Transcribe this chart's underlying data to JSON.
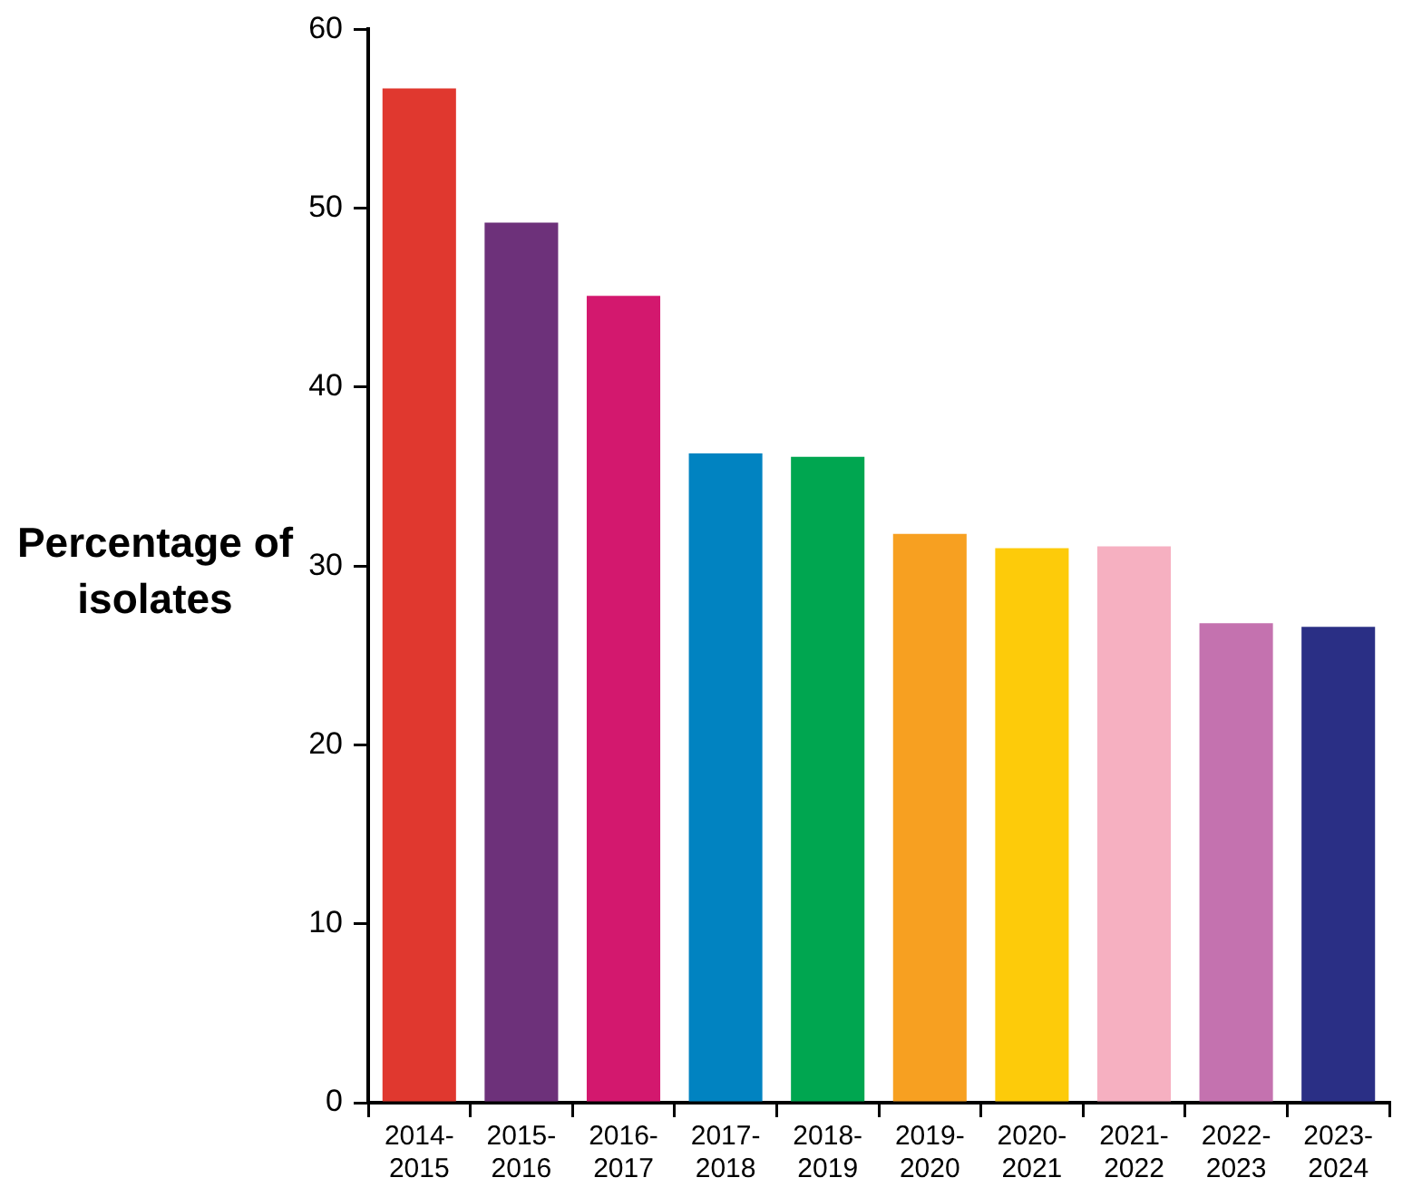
{
  "chart_data": {
    "type": "bar",
    "ylabel": "Percentage of isolates",
    "categories": [
      "2014-2015",
      "2015-2016",
      "2016-2017",
      "2017-2018",
      "2018-2019",
      "2019-2020",
      "2020-2021",
      "2021-2022",
      "2022-2023",
      "2023-2024"
    ],
    "values": [
      56.7,
      49.2,
      45.1,
      36.3,
      36.1,
      31.8,
      31.0,
      31.1,
      26.8,
      26.6
    ],
    "colors": [
      "#e0382f",
      "#6d317a",
      "#d3186e",
      "#0183c1",
      "#00a650",
      "#f7a021",
      "#fdcb0a",
      "#f6b0c1",
      "#c472af",
      "#2a2f85"
    ],
    "ylim": [
      0,
      60
    ],
    "yticks": [
      0,
      10,
      20,
      30,
      40,
      50,
      60
    ]
  }
}
